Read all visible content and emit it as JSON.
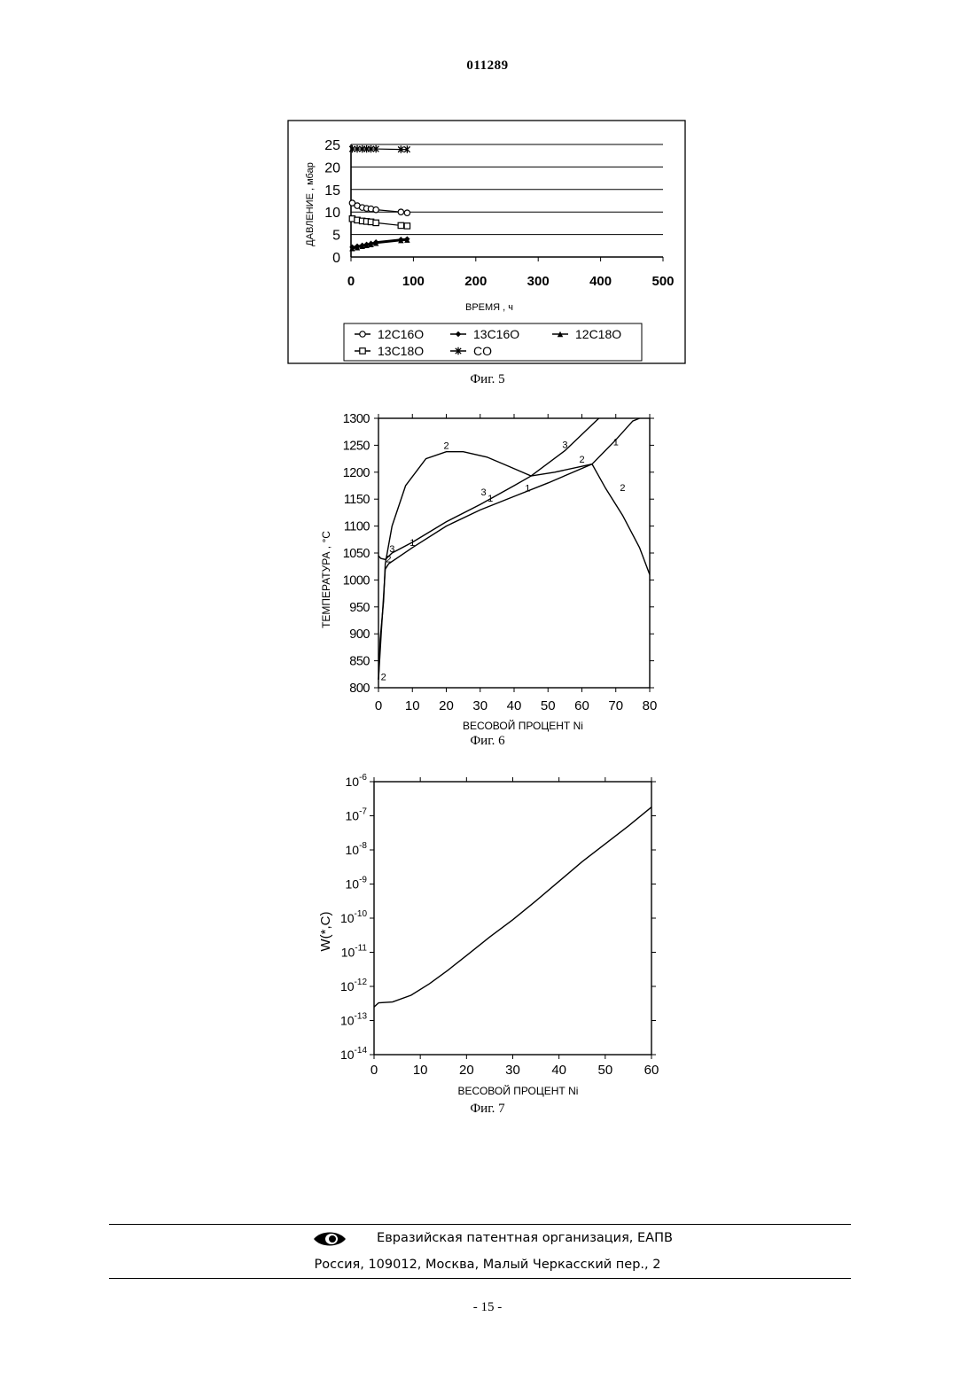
{
  "document_number": "011289",
  "page_number": "- 15 -",
  "footer": {
    "organization": "Евразийская патентная организация, ЕАПВ",
    "address": "Россия, 109012, Москва, Малый Черкасский пер., 2"
  },
  "chart_data": [
    {
      "type": "line",
      "caption": "Фиг. 5",
      "xlabel": "ВРЕМЯ , ч",
      "ylabel": "ДАВЛЕНИЕ , мбар",
      "xlim": [
        0,
        500
      ],
      "ylim": [
        0,
        25
      ],
      "xticks": [
        0,
        100,
        200,
        300,
        400,
        500
      ],
      "yticks": [
        0,
        5,
        10,
        15,
        20,
        25
      ],
      "grid": "horizontal",
      "legend_position": "bottom",
      "series": [
        {
          "name": "12C16O",
          "marker": "circle",
          "x": [
            2,
            10,
            18,
            25,
            32,
            40,
            80,
            90
          ],
          "y": [
            12.0,
            11.4,
            11.0,
            10.8,
            10.7,
            10.5,
            10.0,
            9.8
          ]
        },
        {
          "name": "13C16O",
          "marker": "diamond",
          "x": [
            2,
            10,
            18,
            25,
            32,
            40,
            80,
            90
          ],
          "y": [
            2.2,
            2.4,
            2.6,
            2.8,
            3.0,
            3.3,
            3.9,
            4.0
          ]
        },
        {
          "name": "12C18O",
          "marker": "triangle",
          "x": [
            2,
            10,
            18,
            25,
            32,
            40,
            80,
            90
          ],
          "y": [
            1.9,
            2.1,
            2.4,
            2.6,
            2.8,
            3.1,
            3.7,
            3.8
          ]
        },
        {
          "name": "13C18O",
          "marker": "square",
          "x": [
            2,
            10,
            18,
            25,
            32,
            40,
            80,
            90
          ],
          "y": [
            8.5,
            8.2,
            8.0,
            7.9,
            7.8,
            7.6,
            7.0,
            6.9
          ]
        },
        {
          "name": "CO",
          "marker": "star",
          "x": [
            2,
            10,
            18,
            25,
            32,
            40,
            80,
            90
          ],
          "y": [
            24.0,
            24.0,
            24.0,
            24.0,
            24.0,
            24.0,
            23.9,
            23.9
          ]
        }
      ]
    },
    {
      "type": "line",
      "caption": "Фиг. 6",
      "xlabel": "ВЕСОВОЙ ПРОЦЕНТ Ni",
      "ylabel": "ТЕМПЕРАТУРА , °С",
      "xlim": [
        0,
        80
      ],
      "ylim": [
        800,
        1300
      ],
      "xticks": [
        0,
        10,
        20,
        30,
        40,
        50,
        60,
        70,
        80
      ],
      "yticks": [
        800,
        850,
        900,
        950,
        1000,
        1050,
        1100,
        1150,
        1200,
        1250,
        1300
      ],
      "grid": "none",
      "series": [
        {
          "name": "1",
          "x": [
            0,
            0.8,
            2,
            3,
            10,
            20,
            30,
            40,
            50,
            63,
            70,
            75,
            77
          ],
          "y": [
            815,
            900,
            1020,
            1030,
            1060,
            1100,
            1130,
            1155,
            1180,
            1215,
            1260,
            1295,
            1300
          ]
        },
        {
          "name": "2",
          "x": [
            0,
            0.5,
            1.5,
            2,
            4,
            8,
            14,
            20,
            25,
            32,
            38,
            45,
            52,
            63,
            67,
            72,
            77,
            80
          ],
          "y": [
            815,
            890,
            960,
            1030,
            1100,
            1175,
            1225,
            1238,
            1238,
            1228,
            1212,
            1193,
            1200,
            1215,
            1170,
            1120,
            1060,
            1010
          ]
        },
        {
          "name": "3",
          "x": [
            0,
            0.7,
            2,
            4,
            10,
            20,
            30,
            40,
            45,
            55,
            63,
            65
          ],
          "y": [
            1045,
            1040,
            1038,
            1050,
            1070,
            1108,
            1140,
            1175,
            1193,
            1240,
            1288,
            1300
          ]
        }
      ],
      "annotations": [
        "1",
        "2",
        "3"
      ]
    },
    {
      "type": "line",
      "caption": "Фиг. 7",
      "xlabel": "ВЕСОВОЙ ПРОЦЕНТ Ni",
      "ylabel": "W(*,C)",
      "xlim": [
        0,
        60
      ],
      "ylim": [
        1e-14,
        1e-06
      ],
      "yscale": "log",
      "xticks": [
        0,
        10,
        20,
        30,
        40,
        50,
        60
      ],
      "yticks": [
        "10-14",
        "10-13",
        "10-12",
        "10-11",
        "10-10",
        "10-9",
        "10-8",
        "10-7",
        "10-6"
      ],
      "grid": "none",
      "series": [
        {
          "x": [
            0,
            1,
            4,
            8,
            12,
            16,
            20,
            25,
            30,
            35,
            40,
            45,
            50,
            55,
            60
          ],
          "y": [
            2.5e-13,
            3.3e-13,
            3.5e-13,
            5.5e-13,
            1.2e-12,
            3e-12,
            8e-12,
            2.8e-11,
            9e-11,
            3.2e-10,
            1.2e-09,
            4.5e-09,
            1.5e-08,
            5e-08,
            1.8e-07
          ]
        }
      ]
    }
  ]
}
